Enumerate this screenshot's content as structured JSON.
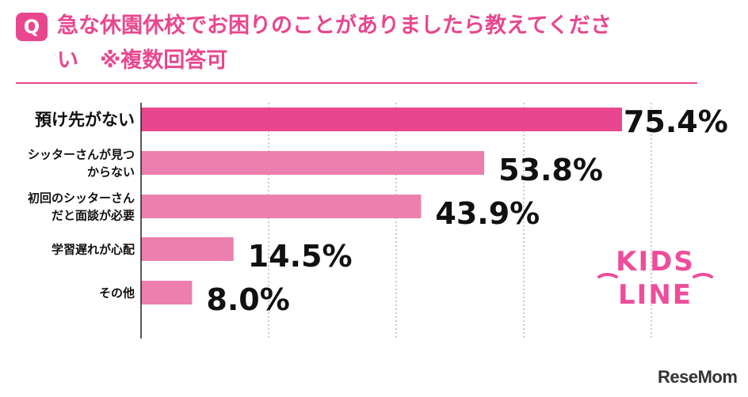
{
  "title": {
    "badge": "Q",
    "line1": "急な休園休校でお困りのことがありましたら教えてくださ",
    "line2": "い　※複数回答可"
  },
  "colors": {
    "accent": "#e8478f",
    "bar_top": "#e8478f",
    "bar": "#ec7fae"
  },
  "chart_data": {
    "type": "bar",
    "orientation": "horizontal",
    "categories": [
      [
        "預け先がない"
      ],
      [
        "シッターさんが見つ",
        "からない"
      ],
      [
        "初回のシッターさん",
        "だと面談が必要"
      ],
      [
        "学習遅れが心配"
      ],
      [
        "その他"
      ]
    ],
    "values": [
      75.4,
      53.8,
      43.9,
      14.5,
      8.0
    ],
    "value_labels": [
      "75.4%",
      "53.8%",
      "43.9%",
      "14.5%",
      "8.0%"
    ],
    "xlim": [
      0,
      80
    ],
    "grid": true,
    "grid_style": "dotted-vertical"
  },
  "logos": {
    "kidsline_top": "KIDS",
    "kidsline_bottom": "LINE",
    "resemom": "ReseMom"
  }
}
